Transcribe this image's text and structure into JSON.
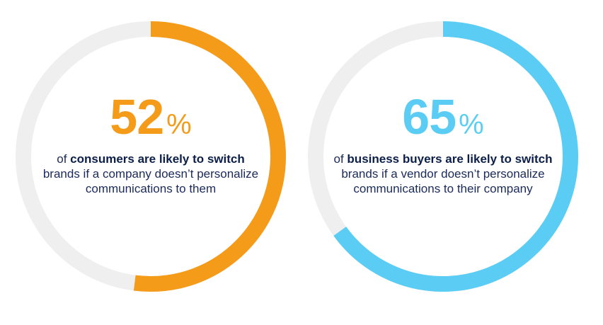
{
  "chart_data": [
    {
      "type": "pie",
      "variant": "donut",
      "value": 52,
      "unit": "%",
      "color": "#f59b1a",
      "track_color": "#efefef",
      "text": {
        "pre": "of ",
        "bold": "consumers are likely to switch",
        "post": " brands if a company doesn’t personalize communications to them"
      }
    },
    {
      "type": "pie",
      "variant": "donut",
      "value": 65,
      "unit": "%",
      "color": "#5bcdf5",
      "track_color": "#efefef",
      "text": {
        "pre": "of ",
        "bold": "business buyers are likely to switch",
        "post": " brands if a vendor doesn’t personalize communications to their company"
      }
    }
  ]
}
